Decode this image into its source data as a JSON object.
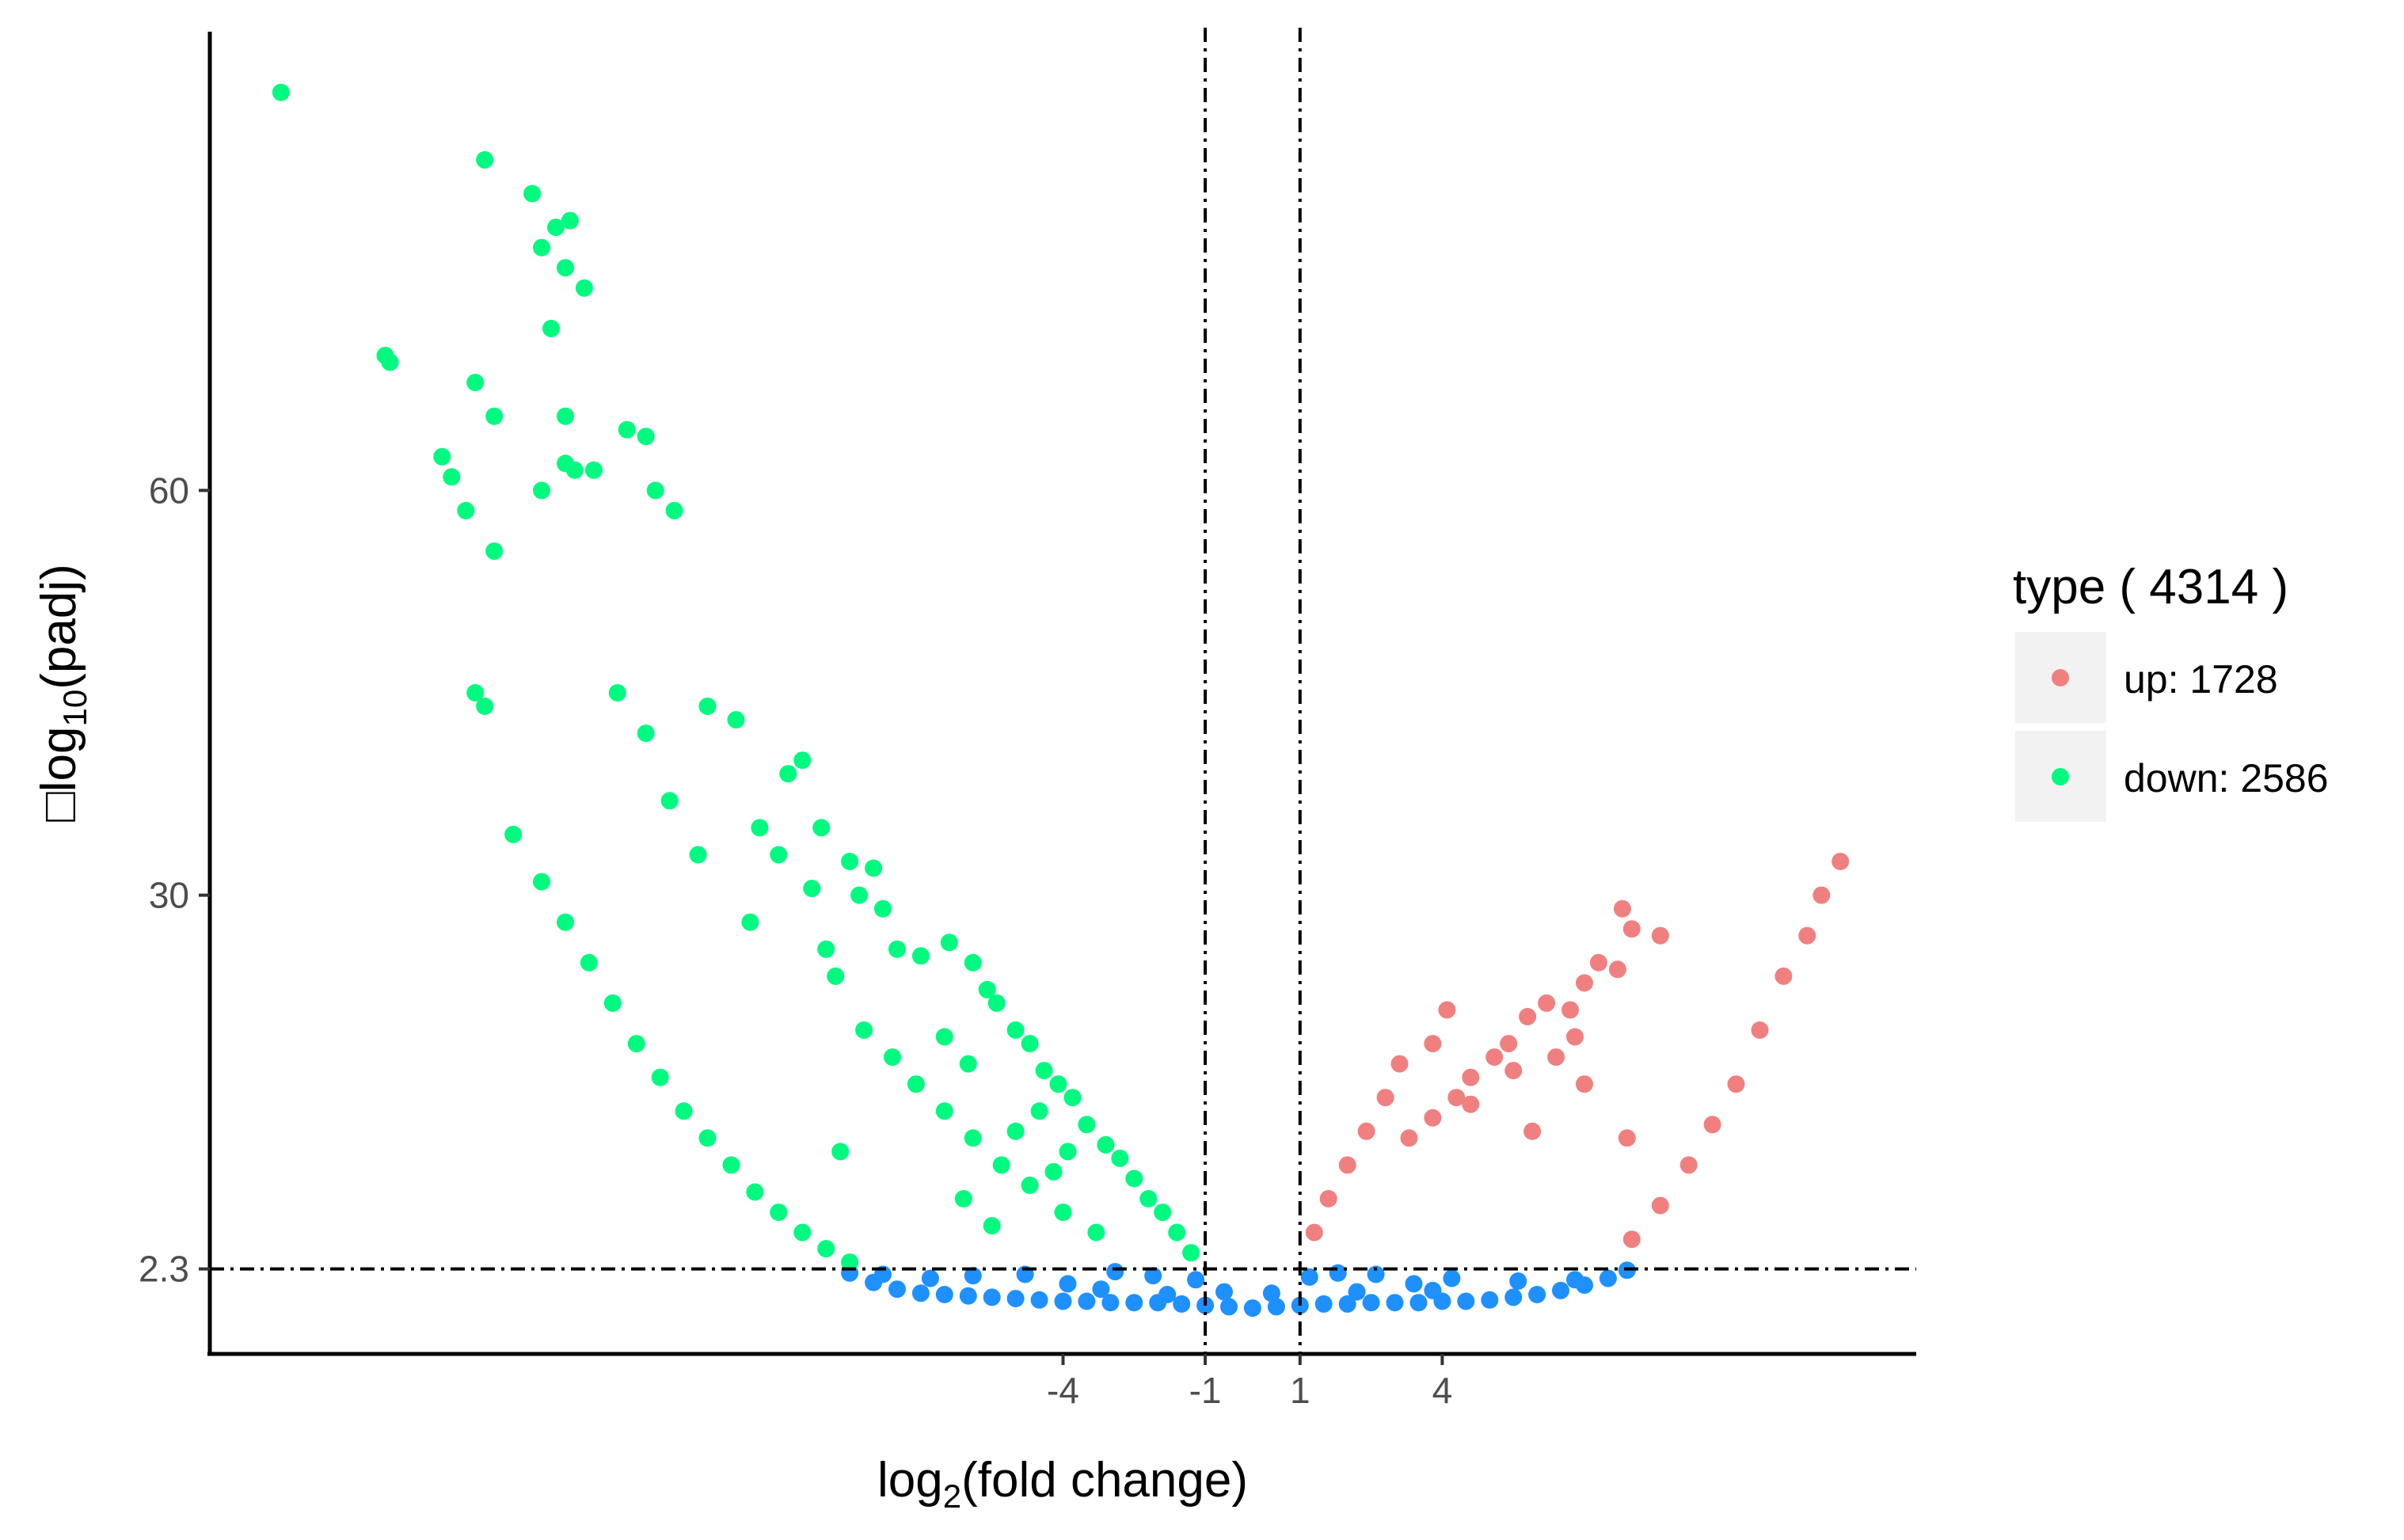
{
  "chart_data": {
    "type": "scatter",
    "xlabel": {
      "base": "log",
      "sub": "2",
      "rest": "(fold change)"
    },
    "ylabel": {
      "prefix": "□",
      "base": "log",
      "sub": "10",
      "rest": "(padj)"
    },
    "x_ticks": [
      -4,
      -1,
      1,
      4
    ],
    "x_tick_labels": [
      "-4",
      "-1",
      "1",
      "4"
    ],
    "y_ticks": [
      2.3,
      30,
      60
    ],
    "y_tick_labels": [
      "2.3",
      "30",
      "60"
    ],
    "xlim": [
      -22,
      14
    ],
    "ylim": [
      -4,
      94
    ],
    "thresholds": {
      "x": [
        -1,
        1
      ],
      "y": 2.3
    },
    "grid": false,
    "legend": {
      "position": "right",
      "title": "type ( 4314 )",
      "entries": [
        {
          "label": "up:  1728",
          "color": "#F08080"
        },
        {
          "label": "down:  2586",
          "color": "#00FA7F"
        }
      ]
    },
    "series": [
      {
        "color": "#F08080",
        "points": [
          [
            12.4,
            32.5
          ],
          [
            12.0,
            30.0
          ],
          [
            11.7,
            27.0
          ],
          [
            11.2,
            24.0
          ],
          [
            10.7,
            20.0
          ],
          [
            10.2,
            16.0
          ],
          [
            9.7,
            13.0
          ],
          [
            9.2,
            10.0
          ],
          [
            8.6,
            7.0
          ],
          [
            8.0,
            4.5
          ],
          [
            7.8,
            29.0
          ],
          [
            8.0,
            27.5
          ],
          [
            8.6,
            27.0
          ],
          [
            7.3,
            25.0
          ],
          [
            7.0,
            23.5
          ],
          [
            6.2,
            22.0
          ],
          [
            5.8,
            21.0
          ],
          [
            5.4,
            19.0
          ],
          [
            5.1,
            18.0
          ],
          [
            4.6,
            16.5
          ],
          [
            4.3,
            15.0
          ],
          [
            3.8,
            13.5
          ],
          [
            3.3,
            12.0
          ],
          [
            3.8,
            19.0
          ],
          [
            4.1,
            21.5
          ],
          [
            3.1,
            17.5
          ],
          [
            2.8,
            15.0
          ],
          [
            2.4,
            12.5
          ],
          [
            2.0,
            10.0
          ],
          [
            1.6,
            7.5
          ],
          [
            1.3,
            5.0
          ],
          [
            6.7,
            21.5
          ],
          [
            7.7,
            24.5
          ],
          [
            7.0,
            16.0
          ],
          [
            6.4,
            18.0
          ],
          [
            6.8,
            19.5
          ],
          [
            5.9,
            12.5
          ],
          [
            4.6,
            14.5
          ],
          [
            5.5,
            17.0
          ],
          [
            7.9,
            12.0
          ]
        ]
      },
      {
        "color": "#00FA7F",
        "points": [
          [
            -20.5,
            89.5
          ],
          [
            -16.2,
            84.5
          ],
          [
            -15.2,
            82.0
          ],
          [
            -15.0,
            78.0
          ],
          [
            -14.7,
            79.5
          ],
          [
            -14.5,
            76.5
          ],
          [
            -14.4,
            80.0
          ],
          [
            -14.1,
            75.0
          ],
          [
            -14.8,
            72.0
          ],
          [
            -18.3,
            70.0
          ],
          [
            -18.2,
            69.5
          ],
          [
            -16.4,
            68.0
          ],
          [
            -16.0,
            65.5
          ],
          [
            -14.5,
            65.5
          ],
          [
            -13.2,
            64.5
          ],
          [
            -12.8,
            64.0
          ],
          [
            -17.1,
            62.5
          ],
          [
            -16.9,
            61.0
          ],
          [
            -16.6,
            58.5
          ],
          [
            -16.0,
            55.5
          ],
          [
            -15.0,
            60.0
          ],
          [
            -14.5,
            62.0
          ],
          [
            -14.3,
            61.5
          ],
          [
            -13.9,
            61.5
          ],
          [
            -12.6,
            60.0
          ],
          [
            -12.2,
            58.5
          ],
          [
            -16.4,
            45.0
          ],
          [
            -16.2,
            44.0
          ],
          [
            -13.4,
            45.0
          ],
          [
            -12.8,
            42.0
          ],
          [
            -11.5,
            44.0
          ],
          [
            -10.9,
            43.0
          ],
          [
            -9.8,
            39.0
          ],
          [
            -9.5,
            40.0
          ],
          [
            -12.3,
            37.0
          ],
          [
            -15.6,
            34.5
          ],
          [
            -11.7,
            33.0
          ],
          [
            -10.4,
            35.0
          ],
          [
            -10.0,
            33.0
          ],
          [
            -9.1,
            35.0
          ],
          [
            -8.5,
            32.5
          ],
          [
            -8.0,
            32.0
          ],
          [
            -9.3,
            30.5
          ],
          [
            -10.6,
            28.0
          ],
          [
            -8.3,
            30.0
          ],
          [
            -7.8,
            29.0
          ],
          [
            -9.0,
            26.0
          ],
          [
            -8.8,
            24.0
          ],
          [
            -7.5,
            26.0
          ],
          [
            -7.0,
            25.5
          ],
          [
            -6.4,
            26.5
          ],
          [
            -5.9,
            25.0
          ],
          [
            -5.6,
            23.0
          ],
          [
            -5.4,
            22.0
          ],
          [
            -5.0,
            20.0
          ],
          [
            -4.7,
            19.0
          ],
          [
            -4.4,
            17.0
          ],
          [
            -4.1,
            16.0
          ],
          [
            -3.8,
            15.0
          ],
          [
            -3.5,
            13.0
          ],
          [
            -3.1,
            11.5
          ],
          [
            -2.8,
            10.5
          ],
          [
            -2.5,
            9.0
          ],
          [
            -2.2,
            7.5
          ],
          [
            -1.9,
            6.5
          ],
          [
            -1.6,
            5.0
          ],
          [
            -1.3,
            3.5
          ],
          [
            -8.2,
            20.0
          ],
          [
            -7.6,
            18.0
          ],
          [
            -7.1,
            16.0
          ],
          [
            -6.5,
            14.0
          ],
          [
            -5.9,
            12.0
          ],
          [
            -5.3,
            10.0
          ],
          [
            -4.7,
            8.5
          ],
          [
            -4.0,
            6.5
          ],
          [
            -3.3,
            5.0
          ],
          [
            -8.7,
            11.0
          ],
          [
            -6.1,
            7.5
          ],
          [
            -5.5,
            5.5
          ],
          [
            -4.2,
            9.5
          ],
          [
            -5.0,
            12.5
          ],
          [
            -4.5,
            14.0
          ],
          [
            -3.9,
            11.0
          ],
          [
            -6.5,
            19.5
          ],
          [
            -6.0,
            17.5
          ],
          [
            -15.0,
            31.0
          ],
          [
            -14.5,
            28.0
          ],
          [
            -14.0,
            25.0
          ],
          [
            -13.5,
            22.0
          ],
          [
            -13.0,
            19.0
          ],
          [
            -12.5,
            16.5
          ],
          [
            -12.0,
            14.0
          ],
          [
            -11.5,
            12.0
          ],
          [
            -11.0,
            10.0
          ],
          [
            -10.5,
            8.0
          ],
          [
            -10.0,
            6.5
          ],
          [
            -9.5,
            5.0
          ],
          [
            -9.0,
            3.8
          ],
          [
            -8.5,
            2.8
          ]
        ]
      },
      {
        "color": "#1E90FF",
        "points": [
          [
            -8.5,
            2.0
          ],
          [
            -8.0,
            1.3
          ],
          [
            -7.5,
            0.8
          ],
          [
            -7.0,
            0.5
          ],
          [
            -6.5,
            0.4
          ],
          [
            -6.0,
            0.3
          ],
          [
            -5.5,
            0.2
          ],
          [
            -5.0,
            0.1
          ],
          [
            -4.5,
            0.0
          ],
          [
            -4.0,
            -0.1
          ],
          [
            -3.5,
            -0.1
          ],
          [
            -3.0,
            -0.2
          ],
          [
            -2.5,
            -0.2
          ],
          [
            -2.0,
            -0.2
          ],
          [
            -1.5,
            -0.3
          ],
          [
            -1.0,
            -0.4
          ],
          [
            -0.5,
            -0.5
          ],
          [
            0.0,
            -0.6
          ],
          [
            0.5,
            -0.5
          ],
          [
            1.0,
            -0.4
          ],
          [
            1.5,
            -0.3
          ],
          [
            2.0,
            -0.3
          ],
          [
            2.5,
            -0.2
          ],
          [
            3.0,
            -0.2
          ],
          [
            3.5,
            -0.2
          ],
          [
            4.0,
            -0.1
          ],
          [
            4.5,
            -0.1
          ],
          [
            5.0,
            0.0
          ],
          [
            5.5,
            0.2
          ],
          [
            6.0,
            0.4
          ],
          [
            6.5,
            0.7
          ],
          [
            7.0,
            1.1
          ],
          [
            7.5,
            1.6
          ],
          [
            7.9,
            2.2
          ],
          [
            -7.8,
            1.9
          ],
          [
            -6.8,
            1.6
          ],
          [
            -5.9,
            1.8
          ],
          [
            -4.8,
            1.9
          ],
          [
            -3.9,
            1.2
          ],
          [
            -2.9,
            2.1
          ],
          [
            -2.1,
            1.8
          ],
          [
            -1.2,
            1.5
          ],
          [
            -0.6,
            0.6
          ],
          [
            0.4,
            0.5
          ],
          [
            1.2,
            1.7
          ],
          [
            1.8,
            2.0
          ],
          [
            2.6,
            1.9
          ],
          [
            3.4,
            1.2
          ],
          [
            4.2,
            1.6
          ],
          [
            5.6,
            1.4
          ],
          [
            6.8,
            1.5
          ],
          [
            -3.2,
            0.8
          ],
          [
            -1.8,
            0.4
          ],
          [
            2.2,
            0.6
          ],
          [
            3.8,
            0.7
          ]
        ]
      }
    ]
  }
}
